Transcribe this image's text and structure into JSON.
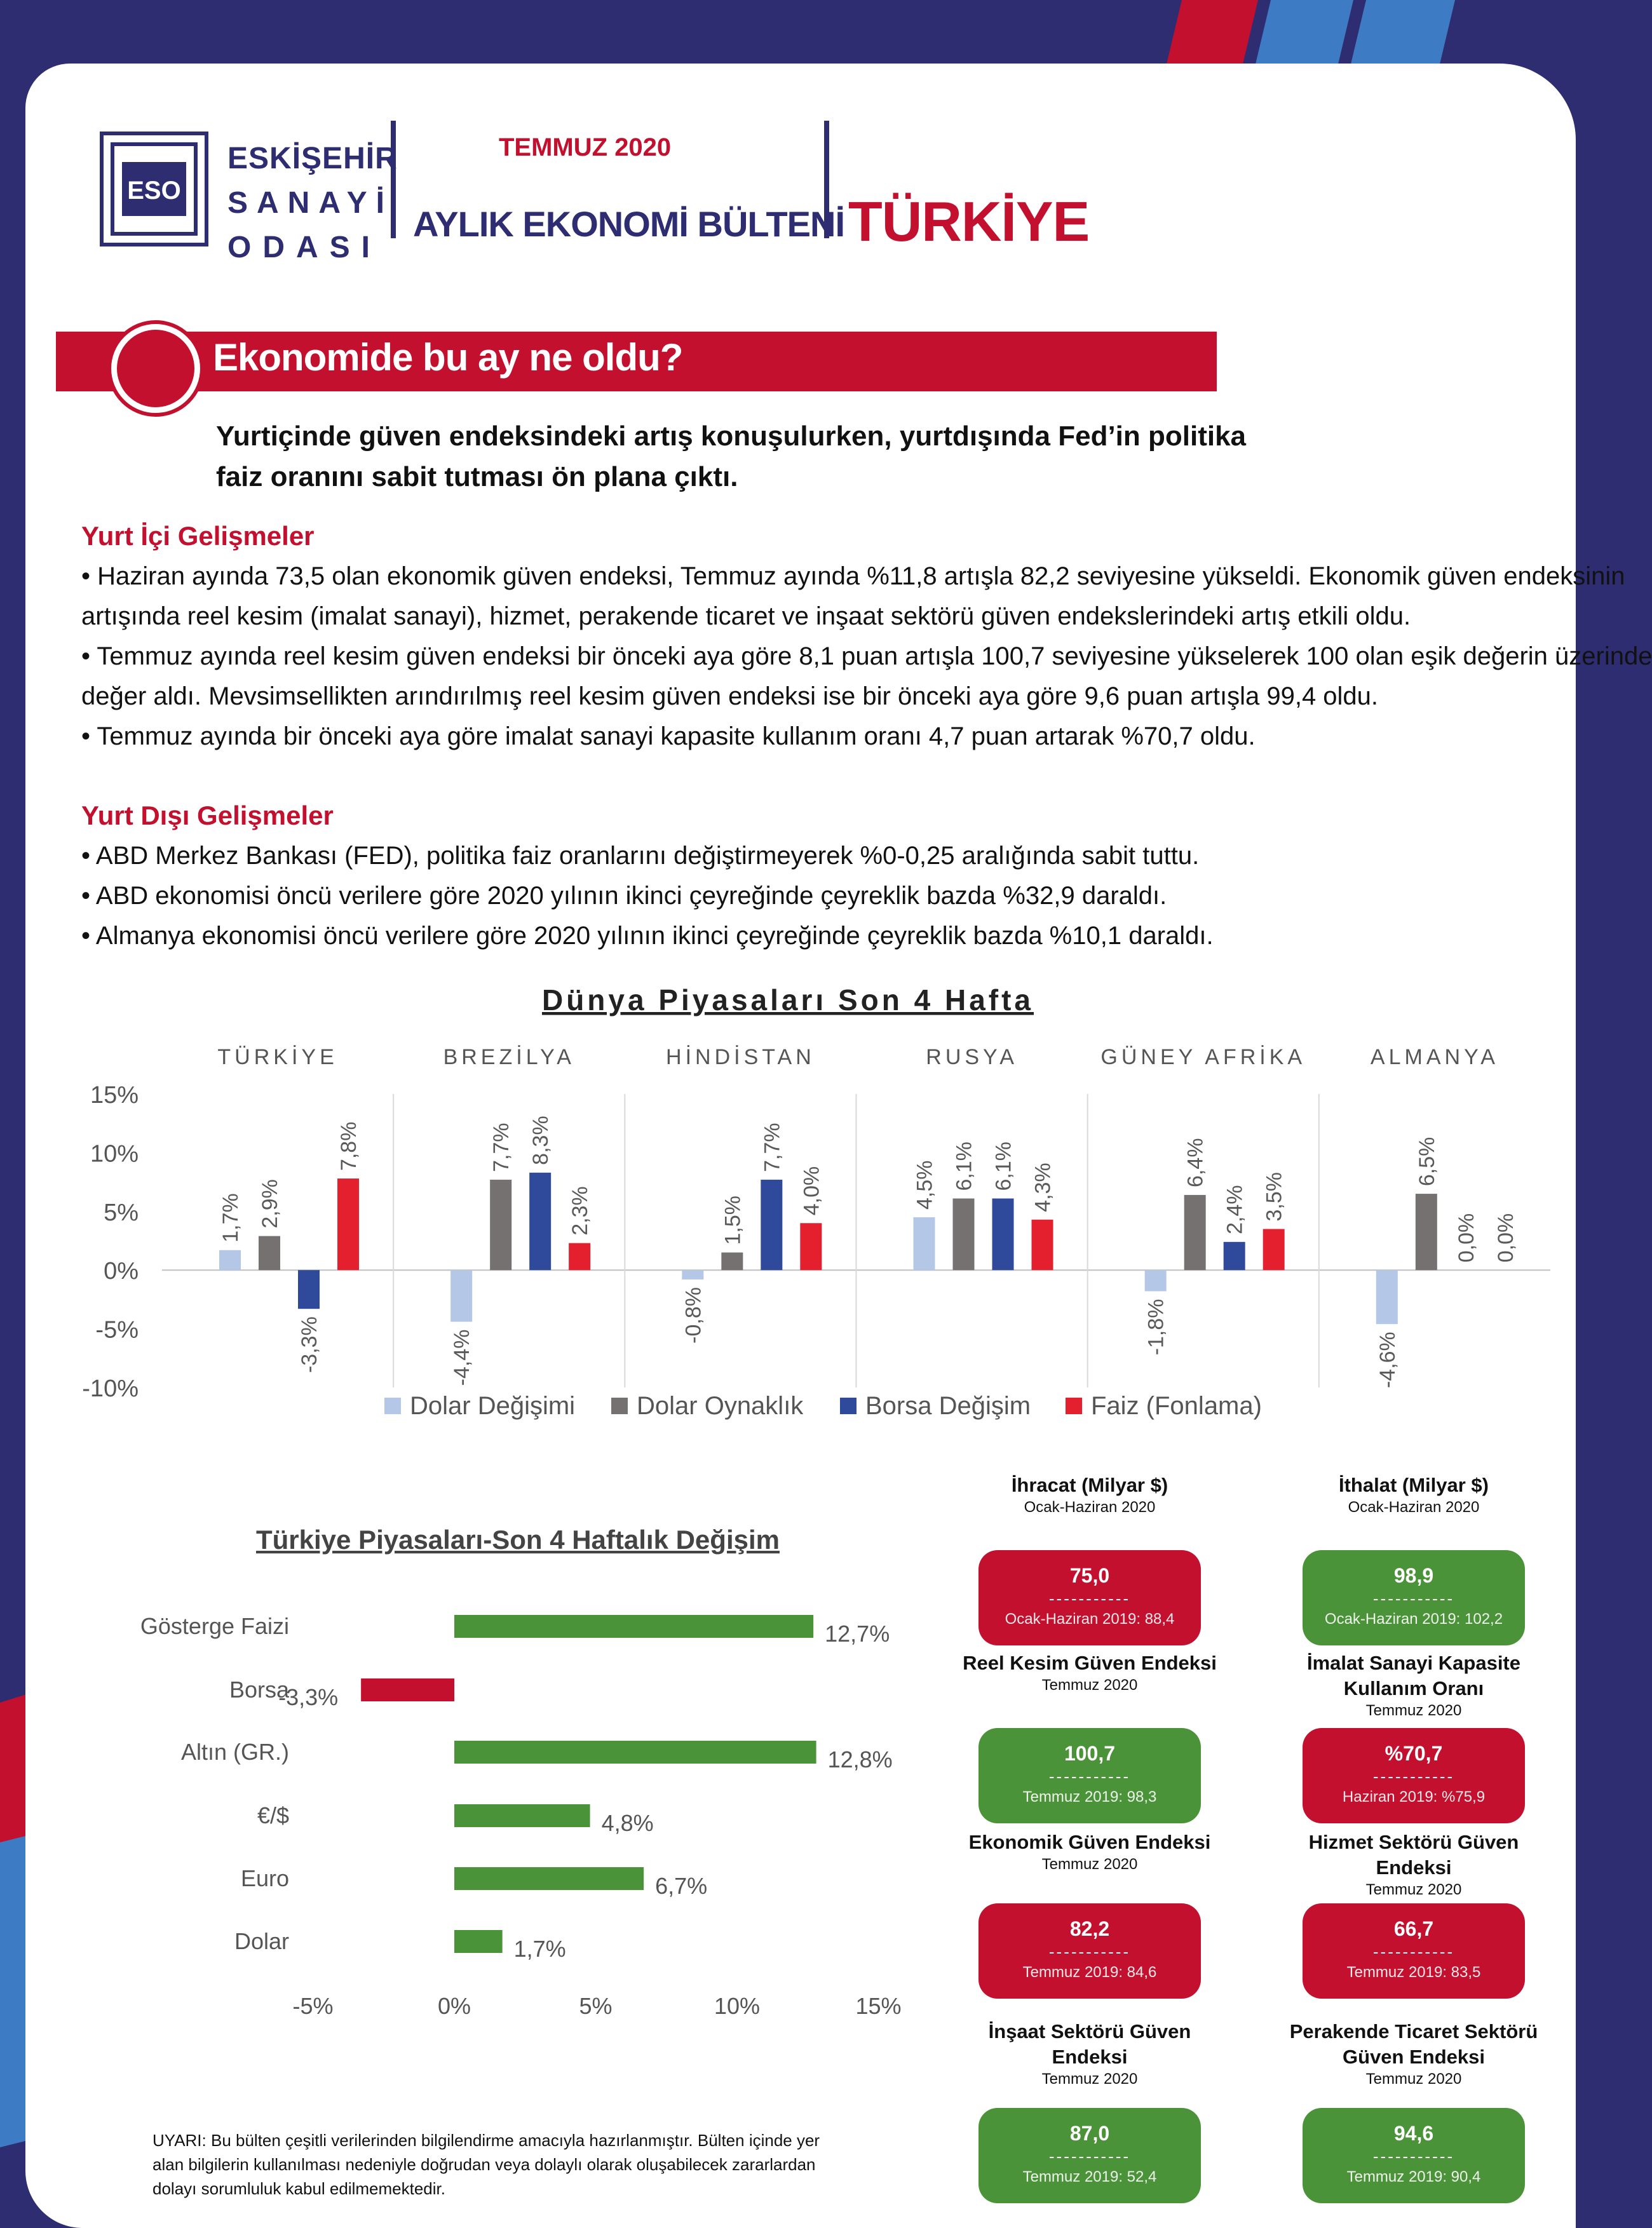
{
  "header": {
    "logo_abbr": "ESO",
    "logo_line1": "ESKİŞEHİR",
    "logo_line2": "SANAYİ",
    "logo_line3": "ODASI",
    "month": "TEMMUZ 2020",
    "bulletin": "AYLIK EKONOMİ BÜLTENİ",
    "country": "TÜRKİYE"
  },
  "section": {
    "title": "Ekonomide bu ay ne oldu?",
    "lead": "Yurtiçinde güven endeksindeki artış konuşulurken, yurtdışında Fed’in politika faiz oranını sabit tutması ön plana çıktı."
  },
  "domestic": {
    "heading": "Yurt İçi Gelişmeler",
    "lines": [
      "• Haziran ayında 73,5 olan ekonomik güven endeksi, Temmuz ayında %11,8 artışla 82,2 seviyesine yükseldi. Ekonomik güven endeksinin",
      "artışında reel kesim (imalat sanayi), hizmet, perakende ticaret ve inşaat sektörü güven endekslerindeki artış etkili oldu.",
      "• Temmuz ayında reel kesim güven endeksi bir önceki aya göre 8,1 puan artışla 100,7 seviyesine yükselerek 100 olan eşik değerin üzerinde",
      "değer aldı. Mevsimsellikten arındırılmış reel kesim güven endeksi ise bir önceki aya göre 9,6 puan artışla 99,4 oldu.",
      "• Temmuz ayında bir önceki aya göre imalat sanayi kapasite kullanım oranı 4,7 puan artarak %70,7 oldu."
    ]
  },
  "foreign": {
    "heading": "Yurt Dışı Gelişmeler",
    "lines": [
      "• ABD Merkez Bankası (FED), politika faiz oranlarını değiştirmeyerek %0-0,25 aralığında sabit tuttu.",
      "• ABD ekonomisi öncü verilere göre 2020 yılının ikinci çeyreğinde çeyreklik bazda %32,9 daraldı.",
      "• Almanya ekonomisi öncü verilere göre 2020 yılının ikinci çeyreğinde çeyreklik bazda %10,1 daraldı."
    ]
  },
  "colors": {
    "red": "#c2102e",
    "navy": "#2e2d72",
    "blue": "#3d7cc4",
    "green": "#4b9338",
    "light_blue": "#b4c7e7",
    "gray": "#767171",
    "bar_blue": "#2f4a9a",
    "bar_red": "#e41f2e"
  },
  "chart_data": [
    {
      "type": "bar",
      "title": "Dünya Piyasaları Son 4 Hafta",
      "categories": [
        "TÜRKİYE",
        "BREZİLYA",
        "HİNDİSTAN",
        "RUSYA",
        "GÜNEY AFRİKA",
        "ALMANYA"
      ],
      "series": [
        {
          "name": "Dolar Değişimi",
          "values": [
            1.7,
            -4.4,
            -0.8,
            4.5,
            -1.8,
            -4.6
          ],
          "labels": [
            "1,7%",
            "-4,4%",
            "-0,8%",
            "4,5%",
            "-1,8%",
            "-4,6%"
          ]
        },
        {
          "name": "Dolar Oynaklık",
          "values": [
            2.9,
            7.7,
            1.5,
            6.1,
            6.4,
            6.5
          ],
          "labels": [
            "2,9%",
            "7,7%",
            "1,5%",
            "6,1%",
            "6,4%",
            "6,5%"
          ]
        },
        {
          "name": "Borsa Değişim",
          "values": [
            -3.3,
            8.3,
            7.7,
            6.1,
            2.4,
            null
          ],
          "labels": [
            "-3,3%",
            "8,3%",
            "7,7%",
            "6,1%",
            "2,4%",
            "0,0%"
          ]
        },
        {
          "name": "Faiz (Fonlama)",
          "values": [
            7.8,
            2.3,
            4.0,
            4.3,
            3.5,
            null
          ],
          "labels": [
            "7,8%",
            "2,3%",
            "4,0%",
            "4,3%",
            "3,5%",
            "0,0%"
          ]
        }
      ],
      "ylim": [
        -10,
        15
      ],
      "yticks": [
        "-10%",
        "-5%",
        "0%",
        "5%",
        "10%",
        "15%"
      ],
      "ytick_values": [
        -10,
        -5,
        0,
        5,
        10,
        15
      ],
      "legend": "bottom"
    },
    {
      "type": "bar",
      "orientation": "horizontal",
      "title": "Türkiye Piyasaları-Son 4 Haftalık Değişim",
      "categories": [
        "Gösterge Faizi",
        "Borsa",
        "Altın (GR.)",
        "€/$",
        "Euro",
        "Dolar"
      ],
      "values": [
        12.7,
        -3.3,
        12.8,
        4.8,
        6.7,
        1.7
      ],
      "labels": [
        "12,7%",
        "-3,3%",
        "12,8%",
        "4,8%",
        "6,7%",
        "1,7%"
      ],
      "xlim": [
        -5,
        15
      ],
      "xticks": [
        "-5%",
        "0%",
        "5%",
        "10%",
        "15%"
      ],
      "xtick_values": [
        -5,
        0,
        5,
        10,
        15
      ]
    }
  ],
  "indicators": [
    {
      "title": "İhracat (Milyar $)",
      "period": "Ocak-Haziran 2020",
      "value": "75,0",
      "divider": "-----------",
      "compare": "Ocak-Haziran 2019: 88,4",
      "status": "red"
    },
    {
      "title": "İthalat (Milyar $)",
      "period": "Ocak-Haziran 2020",
      "value": "98,9",
      "divider": "-----------",
      "compare": "Ocak-Haziran 2019: 102,2",
      "status": "green"
    },
    {
      "title": "Reel Kesim Güven Endeksi",
      "period": "Temmuz 2020",
      "value": "100,7",
      "divider": "-----------",
      "compare": "Temmuz 2019: 98,3",
      "status": "green"
    },
    {
      "title": "İmalat Sanayi Kapasite Kullanım Oranı",
      "period": "Temmuz 2020",
      "value": "%70,7",
      "divider": "-----------",
      "compare": "Haziran 2019: %75,9",
      "status": "red"
    },
    {
      "title": "Ekonomik Güven Endeksi",
      "period": "Temmuz 2020",
      "value": "82,2",
      "divider": "-----------",
      "compare": "Temmuz 2019: 84,6",
      "status": "red"
    },
    {
      "title": "Hizmet Sektörü Güven Endeksi",
      "period": "Temmuz 2020",
      "value": "66,7",
      "divider": "-----------",
      "compare": "Temmuz 2019: 83,5",
      "status": "red"
    },
    {
      "title": "İnşaat Sektörü Güven Endeksi",
      "period": "Temmuz 2020",
      "value": "87,0",
      "divider": "-----------",
      "compare": "Temmuz 2019: 52,4",
      "status": "green"
    },
    {
      "title": "Perakende Ticaret Sektörü Güven Endeksi",
      "period": "Temmuz 2020",
      "value": "94,6",
      "divider": "-----------",
      "compare": "Temmuz 2019: 90,4",
      "status": "green"
    }
  ],
  "disclaimer": "UYARI: Bu bülten çeşitli verilerinden bilgilendirme amacıyla hazırlanmıştır. Bülten içinde yer alan bilgilerin kullanılması nedeniyle doğrudan veya dolaylı olarak oluşabilecek zararlardan dolayı sorumluluk kabul edilmemektedir."
}
